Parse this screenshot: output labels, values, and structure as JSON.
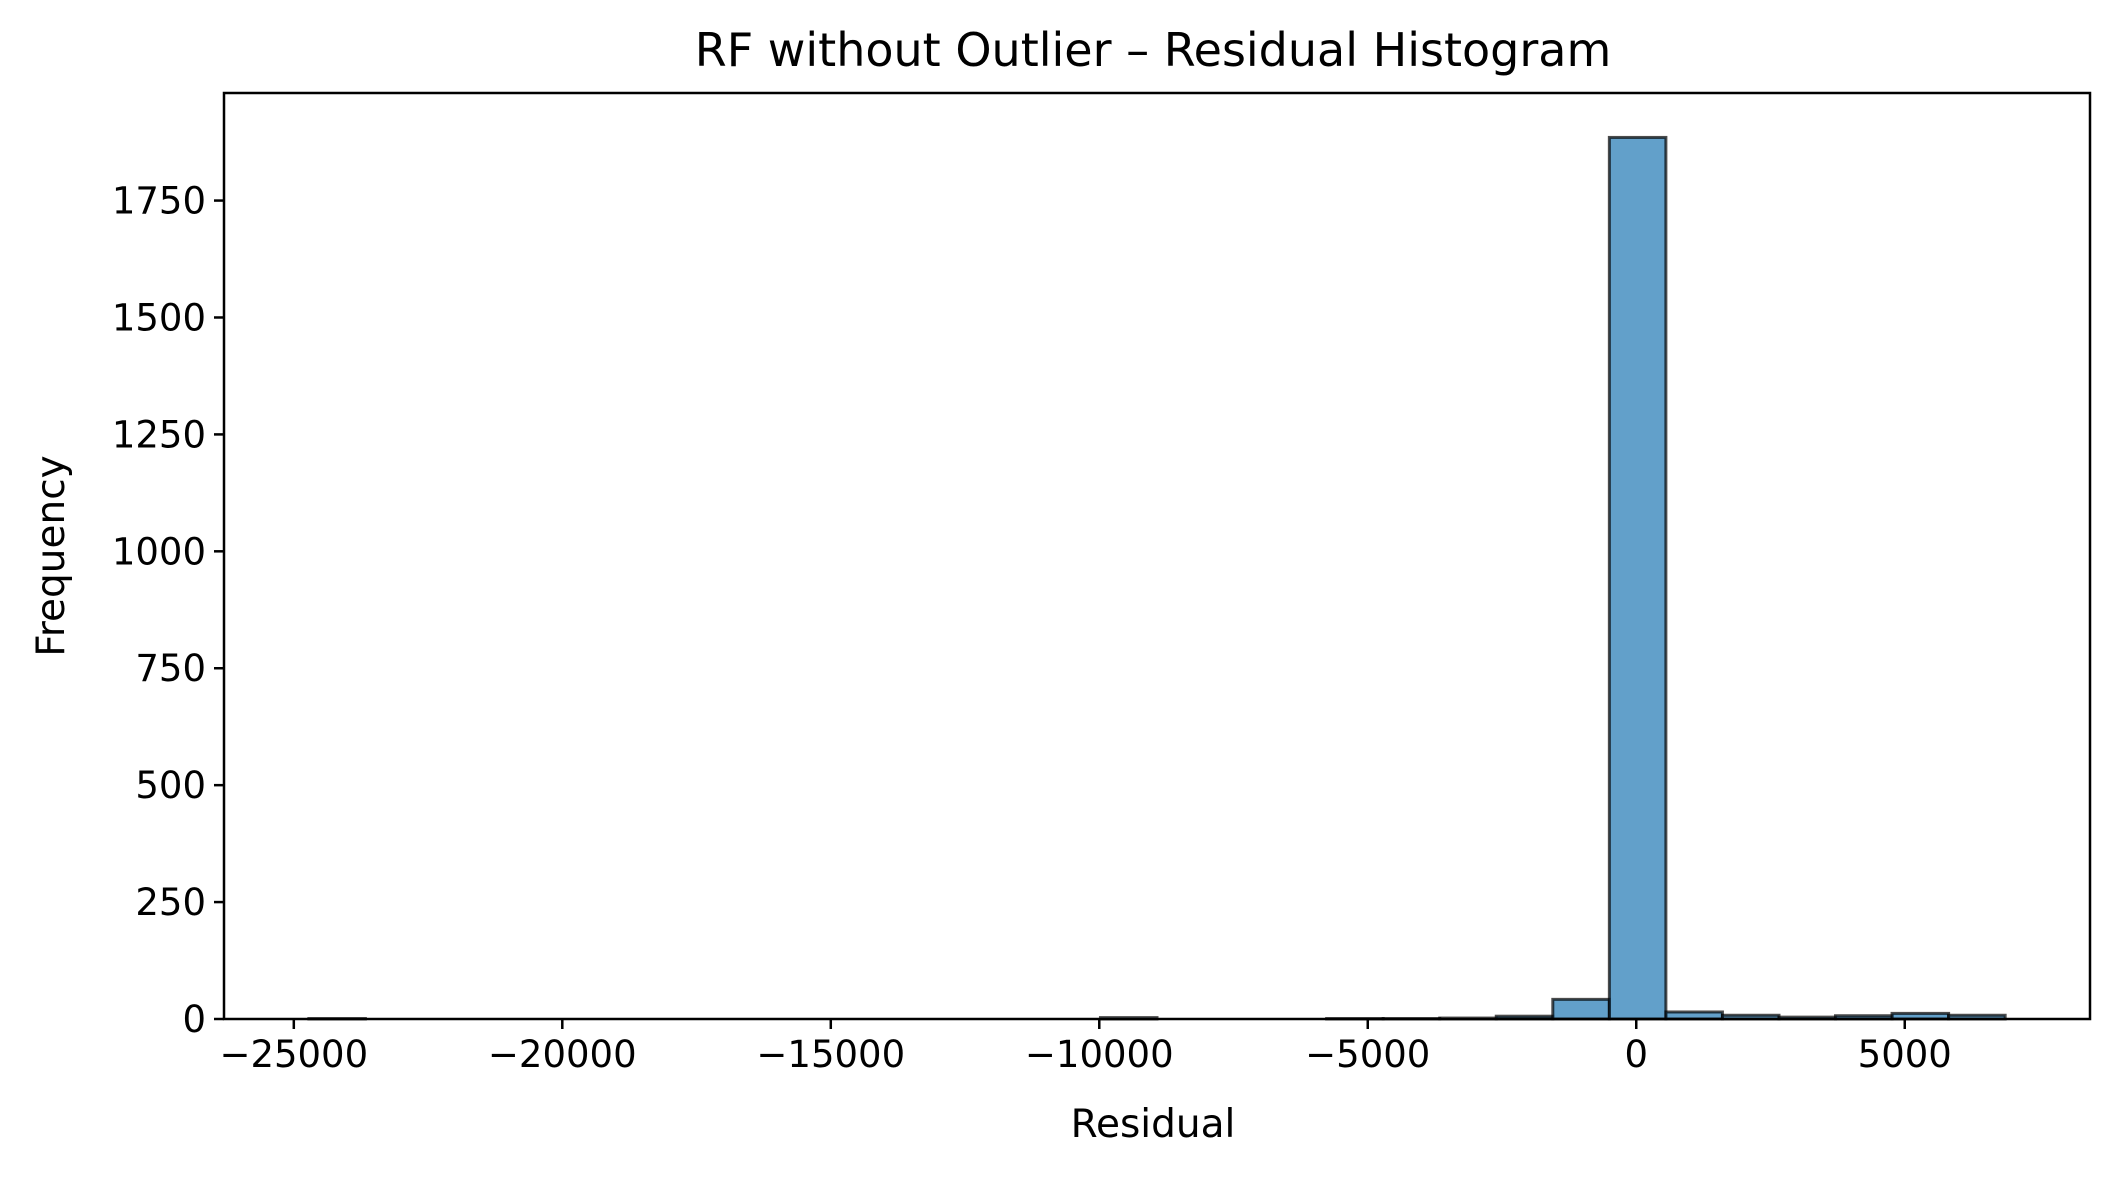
{
  "chart_data": {
    "type": "bar",
    "title": "RF without Outlier – Residual Histogram",
    "xlabel": "Residual",
    "ylabel": "Frequency",
    "xlim": [
      -26300,
      8450
    ],
    "ylim": [
      0,
      1980
    ],
    "xticks": [
      {
        "value": -25000,
        "label": "−25000"
      },
      {
        "value": -20000,
        "label": "−20000"
      },
      {
        "value": -15000,
        "label": "−15000"
      },
      {
        "value": -10000,
        "label": "−10000"
      },
      {
        "value": -5000,
        "label": "−5000"
      },
      {
        "value": 0,
        "label": "0"
      },
      {
        "value": 5000,
        "label": "5000"
      }
    ],
    "yticks": [
      {
        "value": 0,
        "label": "0"
      },
      {
        "value": 250,
        "label": "250"
      },
      {
        "value": 500,
        "label": "500"
      },
      {
        "value": 750,
        "label": "750"
      },
      {
        "value": 1000,
        "label": "1000"
      },
      {
        "value": 1250,
        "label": "1250"
      },
      {
        "value": 1500,
        "label": "1500"
      },
      {
        "value": 1750,
        "label": "1750"
      }
    ],
    "bin_edges": [
      -24720,
      -23667,
      -22614,
      -21561,
      -20508,
      -19455,
      -18402,
      -17349,
      -16296,
      -15243,
      -14190,
      -13137,
      -12084,
      -11031,
      -9978,
      -8925,
      -7872,
      -6819,
      -5766,
      -4713,
      -3660,
      -2607,
      -1554,
      -501,
      552,
      1605,
      2658,
      3711,
      4764,
      5817,
      6870
    ],
    "counts": [
      1,
      0,
      0,
      0,
      0,
      0,
      0,
      0,
      0,
      0,
      0,
      0,
      0,
      0,
      3,
      0,
      0,
      0,
      1,
      1,
      2,
      6,
      42,
      1885,
      15,
      8,
      4,
      7,
      12,
      8
    ],
    "colors": {
      "bar_fill": "#1f77b4",
      "bar_opacity": "0.7",
      "bar_edge": "#000000"
    },
    "grid": false
  }
}
